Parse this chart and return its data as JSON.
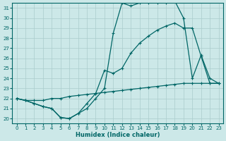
{
  "xlabel": "Humidex (Indice chaleur)",
  "bg_color": "#cce8e8",
  "grid_color": "#aacccc",
  "line_color": "#006666",
  "xlim": [
    -0.5,
    23.5
  ],
  "ylim": [
    19.5,
    31.5
  ],
  "xticks": [
    0,
    1,
    2,
    3,
    4,
    5,
    6,
    7,
    8,
    9,
    10,
    11,
    12,
    13,
    14,
    15,
    16,
    17,
    18,
    19,
    20,
    21,
    22,
    23
  ],
  "yticks": [
    20,
    21,
    22,
    23,
    24,
    25,
    26,
    27,
    28,
    29,
    30,
    31
  ],
  "line1_x": [
    0,
    1,
    2,
    3,
    4,
    5,
    6,
    7,
    8,
    9,
    10,
    11,
    12,
    13,
    14,
    15,
    16,
    17,
    18,
    19,
    20,
    21,
    22,
    23
  ],
  "line1_y": [
    22.0,
    21.8,
    21.5,
    21.2,
    21.0,
    20.1,
    20.0,
    20.5,
    21.0,
    22.0,
    23.0,
    28.5,
    31.5,
    31.2,
    31.5,
    31.5,
    31.5,
    31.5,
    31.7,
    30.0,
    24.0,
    26.3,
    24.0,
    23.5
  ],
  "line2_x": [
    0,
    1,
    2,
    3,
    4,
    5,
    6,
    7,
    8,
    9,
    10,
    11,
    12,
    13,
    14,
    15,
    16,
    17,
    18,
    19,
    20,
    21,
    22,
    23
  ],
  "line2_y": [
    22.0,
    21.8,
    21.5,
    21.2,
    21.0,
    20.1,
    20.0,
    20.5,
    21.5,
    22.5,
    24.8,
    24.5,
    25.0,
    26.5,
    27.5,
    28.2,
    28.8,
    29.2,
    29.5,
    29.0,
    29.0,
    26.2,
    23.5,
    23.5
  ],
  "line3_x": [
    0,
    1,
    2,
    3,
    4,
    5,
    6,
    7,
    8,
    9,
    10,
    11,
    12,
    13,
    14,
    15,
    16,
    17,
    18,
    19,
    20,
    21,
    22,
    23
  ],
  "line3_y": [
    22.0,
    21.8,
    21.8,
    21.8,
    22.0,
    22.0,
    22.2,
    22.3,
    22.4,
    22.5,
    22.6,
    22.7,
    22.8,
    22.9,
    23.0,
    23.1,
    23.2,
    23.3,
    23.4,
    23.5,
    23.5,
    23.5,
    23.5,
    23.5
  ]
}
